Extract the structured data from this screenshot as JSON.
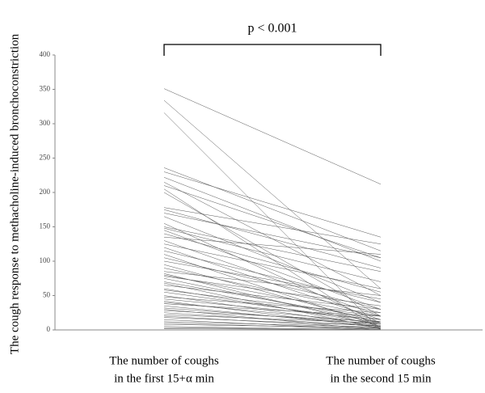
{
  "chart_data": {
    "type": "slope",
    "title": "p < 0.001",
    "y_label": "The cough response to methacholine-induced bronchoconstriction",
    "categories": [
      [
        "The number of coughs",
        "in the first 15+α min"
      ],
      [
        "The number of coughs",
        "in the second 15 min"
      ]
    ],
    "ylim": [
      0,
      400
    ],
    "yticks": [
      0,
      50,
      100,
      150,
      200,
      250,
      300,
      350,
      400
    ],
    "color": "#555555",
    "series": [
      {
        "values": [
          351,
          212
        ]
      },
      {
        "values": [
          334,
          60
        ]
      },
      {
        "values": [
          316,
          0
        ]
      },
      {
        "values": [
          236,
          115
        ]
      },
      {
        "values": [
          230,
          135
        ]
      },
      {
        "values": [
          222,
          100
        ]
      },
      {
        "values": [
          215,
          50
        ]
      },
      {
        "values": [
          210,
          105
        ]
      },
      {
        "values": [
          205,
          0
        ]
      },
      {
        "values": [
          200,
          20
        ]
      },
      {
        "values": [
          178,
          125
        ]
      },
      {
        "values": [
          175,
          90
        ]
      },
      {
        "values": [
          170,
          105
        ]
      },
      {
        "values": [
          165,
          40
        ]
      },
      {
        "values": [
          155,
          10
        ]
      },
      {
        "values": [
          150,
          85
        ]
      },
      {
        "values": [
          148,
          70
        ]
      },
      {
        "values": [
          145,
          30
        ]
      },
      {
        "values": [
          140,
          55
        ]
      },
      {
        "values": [
          135,
          110
        ]
      },
      {
        "values": [
          130,
          20
        ]
      },
      {
        "values": [
          125,
          60
        ]
      },
      {
        "values": [
          120,
          15
        ]
      },
      {
        "values": [
          115,
          40
        ]
      },
      {
        "values": [
          110,
          5
        ]
      },
      {
        "values": [
          105,
          30
        ]
      },
      {
        "values": [
          100,
          45
        ]
      },
      {
        "values": [
          95,
          10
        ]
      },
      {
        "values": [
          90,
          25
        ]
      },
      {
        "values": [
          85,
          50
        ]
      },
      {
        "values": [
          82,
          5
        ]
      },
      {
        "values": [
          80,
          20
        ]
      },
      {
        "values": [
          78,
          35
        ]
      },
      {
        "values": [
          75,
          10
        ]
      },
      {
        "values": [
          70,
          15
        ]
      },
      {
        "values": [
          68,
          2
        ]
      },
      {
        "values": [
          65,
          30
        ]
      },
      {
        "values": [
          60,
          8
        ]
      },
      {
        "values": [
          58,
          20
        ]
      },
      {
        "values": [
          55,
          12
        ]
      },
      {
        "values": [
          50,
          5
        ]
      },
      {
        "values": [
          48,
          25
        ]
      },
      {
        "values": [
          45,
          15
        ]
      },
      {
        "values": [
          42,
          3
        ]
      },
      {
        "values": [
          40,
          10
        ]
      },
      {
        "values": [
          38,
          20
        ]
      },
      {
        "values": [
          35,
          5
        ]
      },
      {
        "values": [
          32,
          8
        ]
      },
      {
        "values": [
          30,
          0
        ]
      },
      {
        "values": [
          28,
          12
        ]
      },
      {
        "values": [
          25,
          5
        ]
      },
      {
        "values": [
          22,
          10
        ]
      },
      {
        "values": [
          20,
          2
        ]
      },
      {
        "values": [
          18,
          6
        ]
      },
      {
        "values": [
          15,
          0
        ]
      },
      {
        "values": [
          12,
          4
        ]
      },
      {
        "values": [
          10,
          1
        ]
      },
      {
        "values": [
          8,
          3
        ]
      },
      {
        "values": [
          5,
          0
        ]
      },
      {
        "values": [
          3,
          1
        ]
      },
      {
        "values": [
          2,
          0
        ]
      }
    ]
  }
}
